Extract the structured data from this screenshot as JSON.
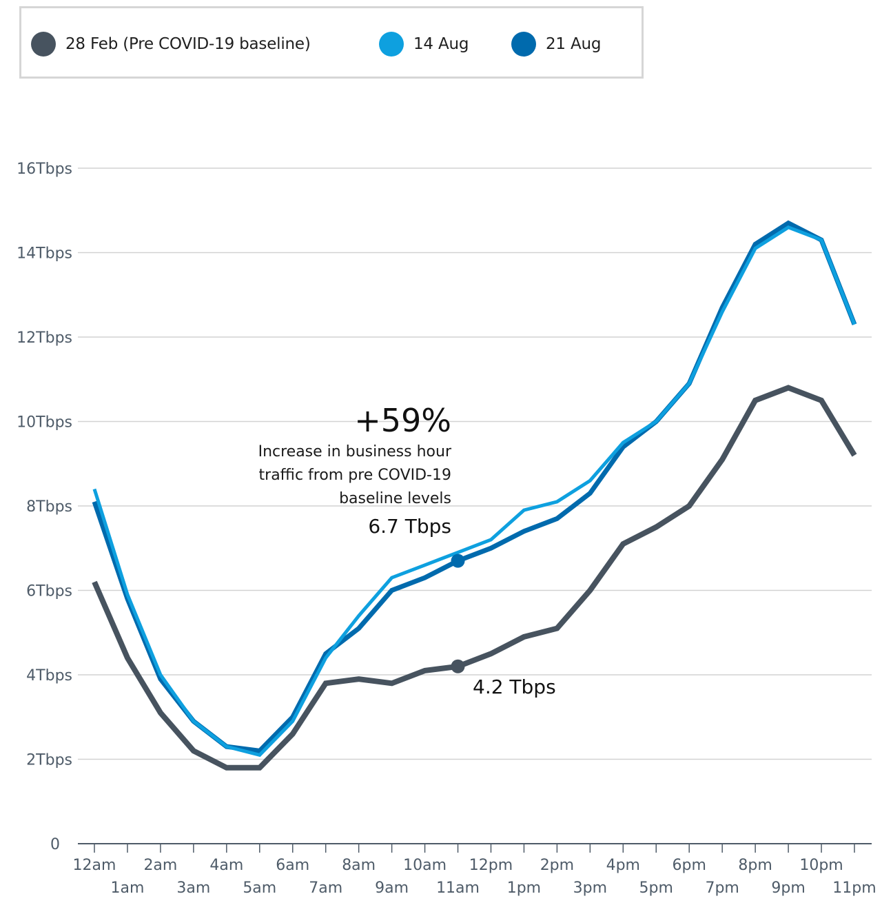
{
  "legend": {
    "items": [
      {
        "label": "28 Feb (Pre COVID-19 baseline)",
        "color": "#47535f"
      },
      {
        "label": "14 Aug",
        "color": "#0ea0df"
      },
      {
        "label": "21 Aug",
        "color": "#006aad"
      }
    ]
  },
  "annotation": {
    "headline": "+59%",
    "lines": [
      "Increase in business hour",
      "traffic from pre COVID-19",
      "baseline levels"
    ],
    "aug_value_label": "6.7 Tbps",
    "baseline_value_label": "4.2 Tbps",
    "marker_hour_index": 11
  },
  "chart_data": {
    "type": "line",
    "title": "",
    "xlabel": "",
    "ylabel": "",
    "x": [
      "12am",
      "1am",
      "2am",
      "3am",
      "4am",
      "5am",
      "6am",
      "7am",
      "8am",
      "9am",
      "10am",
      "11am",
      "12pm",
      "1pm",
      "2pm",
      "3pm",
      "4pm",
      "5pm",
      "6pm",
      "7pm",
      "8pm",
      "9pm",
      "10pm",
      "11pm"
    ],
    "ylim": [
      0,
      16
    ],
    "yticks": [
      0,
      2,
      4,
      6,
      8,
      10,
      12,
      14,
      16
    ],
    "ytick_labels": [
      "0",
      "2Tbps",
      "4Tbps",
      "6Tbps",
      "8Tbps",
      "10Tbps",
      "12Tbps",
      "14Tbps",
      "16Tbps"
    ],
    "grid": true,
    "legend_position": "top-left",
    "series": [
      {
        "name": "28 Feb (Pre COVID-19 baseline)",
        "color": "#47535f",
        "values": [
          6.2,
          4.4,
          3.1,
          2.2,
          1.8,
          1.8,
          2.6,
          3.8,
          3.9,
          3.8,
          4.1,
          4.2,
          4.5,
          4.9,
          5.1,
          6.0,
          7.1,
          7.5,
          8.0,
          9.1,
          10.5,
          10.8,
          10.5,
          9.2
        ]
      },
      {
        "name": "14 Aug",
        "color": "#0ea0df",
        "values": [
          8.4,
          5.9,
          4.0,
          2.9,
          2.3,
          2.1,
          2.9,
          4.4,
          5.4,
          6.3,
          6.6,
          6.9,
          7.2,
          7.9,
          8.1,
          8.6,
          9.5,
          10.0,
          10.9,
          12.6,
          14.1,
          14.6,
          14.3,
          12.3
        ]
      },
      {
        "name": "21 Aug",
        "color": "#006aad",
        "values": [
          8.1,
          5.8,
          3.9,
          2.9,
          2.3,
          2.2,
          3.0,
          4.5,
          5.1,
          6.0,
          6.3,
          6.7,
          7.0,
          7.4,
          7.7,
          8.3,
          9.4,
          10.0,
          10.9,
          12.7,
          14.2,
          14.7,
          14.3,
          12.3
        ]
      }
    ],
    "annotations": [
      {
        "text": "+59%",
        "note": "Increase in business hour traffic from pre COVID-19 baseline levels"
      },
      {
        "text": "6.7 Tbps",
        "x": "11am",
        "series": "21 Aug",
        "y": 6.7
      },
      {
        "text": "4.2 Tbps",
        "x": "11am",
        "series": "28 Feb (Pre COVID-19 baseline)",
        "y": 4.2
      }
    ]
  }
}
